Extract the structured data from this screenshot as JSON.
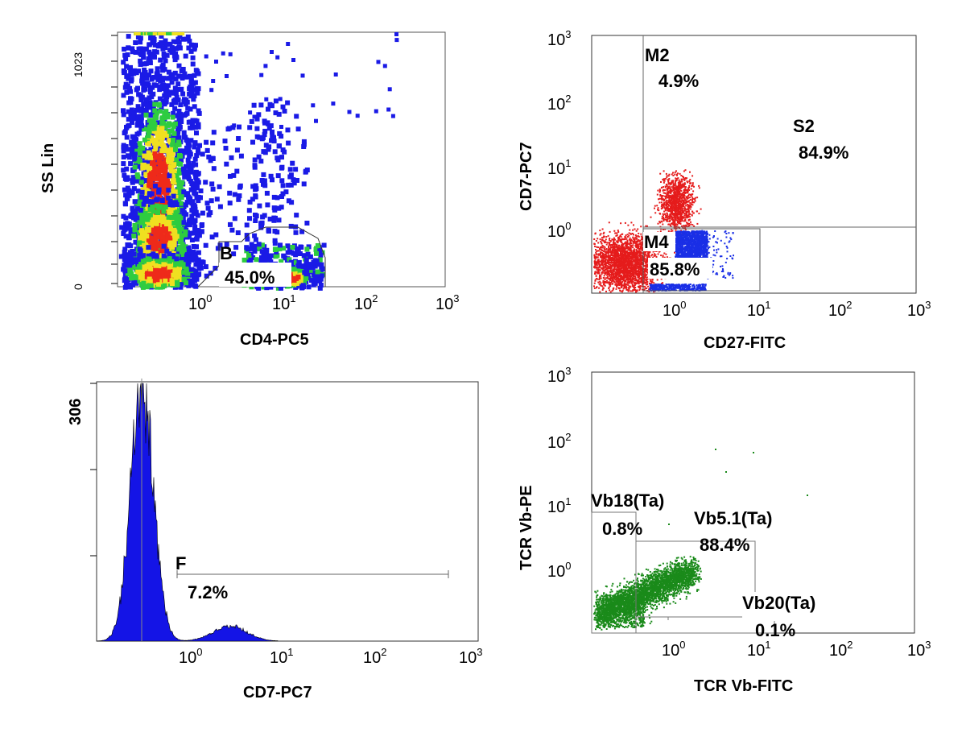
{
  "colors": {
    "density_low": "#1a1ae6",
    "density_mid": "#2ecc40",
    "density_high": "#f0e020",
    "density_peak": "#ee2a1a",
    "histogram_fill": "#1414e6",
    "red_events": "#e51c1c",
    "blue_events": "#1a2fe6",
    "green_events": "#1a8a1a"
  },
  "chart_data": [
    {
      "type": "scatter",
      "subtype": "density_dot_plot",
      "xlabel": "CD4-PC5",
      "ylabel": "SS Lin",
      "x_scale": "log",
      "xlim": [
        0.1,
        1000
      ],
      "y_scale": "linear",
      "ylim": [
        0,
        1023
      ],
      "x_tick_labels": [
        "10^0",
        "10^1",
        "10^2",
        "10^3"
      ],
      "y_tick_labels": [
        "0",
        "1023"
      ],
      "gates": [
        {
          "name": "B",
          "percent": "45.0%",
          "x_range": [
            10,
            30
          ],
          "y_range": [
            0,
            180
          ]
        }
      ],
      "clusters": [
        {
          "x_center": 0.3,
          "y_center": 400,
          "density": "high"
        },
        {
          "x_center": 0.3,
          "y_center": 200,
          "density": "high"
        },
        {
          "x_center": 0.3,
          "y_center": 60,
          "density": "high"
        },
        {
          "x_center": 13,
          "y_center": 60,
          "density": "peak"
        }
      ]
    },
    {
      "type": "scatter",
      "subtype": "quadrant_dot_plot",
      "xlabel": "CD27-FITC",
      "ylabel": "CD7-PC7",
      "x_scale": "log",
      "y_scale": "log",
      "xlim": [
        0.1,
        1000
      ],
      "ylim": [
        0.1,
        1000
      ],
      "x_tick_labels": [
        "10^0",
        "10^1",
        "10^2",
        "10^3"
      ],
      "y_tick_labels": [
        "10^0",
        "10^1",
        "10^2",
        "10^3"
      ],
      "gates": [
        {
          "name": "M2",
          "percent": "4.9%"
        },
        {
          "name": "S2",
          "percent": "84.9%"
        },
        {
          "name": "M4",
          "percent": "85.8%"
        }
      ],
      "series": [
        {
          "color": "red",
          "clusters": [
            {
              "x": 0.25,
              "y": 0.3
            },
            {
              "x": 1.1,
              "y": 2.5
            }
          ]
        },
        {
          "color": "blue",
          "clusters": [
            {
              "x": 1.3,
              "y": 0.4
            }
          ]
        }
      ]
    },
    {
      "type": "area",
      "subtype": "histogram",
      "xlabel": "CD7-PC7",
      "x_scale": "log",
      "xlim": [
        0.1,
        1000
      ],
      "ylim": [
        0,
        306
      ],
      "y_tick_labels": [
        "306"
      ],
      "x_tick_labels": [
        "10^0",
        "10^1",
        "10^2",
        "10^3"
      ],
      "gates": [
        {
          "name": "F",
          "percent": "7.2%",
          "x_range": [
            0.8,
            600
          ]
        }
      ],
      "peaks": [
        {
          "x": 0.3,
          "y": 306
        },
        {
          "x": 2.5,
          "y": 18
        }
      ]
    },
    {
      "type": "scatter",
      "subtype": "dot_plot",
      "xlabel": "TCR Vb-FITC",
      "ylabel": "TCR Vb-PE",
      "x_scale": "log",
      "y_scale": "log",
      "xlim": [
        0.1,
        1000
      ],
      "ylim": [
        0.1,
        1000
      ],
      "x_tick_labels": [
        "10^0",
        "10^1",
        "10^2",
        "10^3"
      ],
      "y_tick_labels": [
        "10^0",
        "10^1",
        "10^2",
        "10^3"
      ],
      "gates": [
        {
          "name": "Vb18(Ta)",
          "percent": "0.8%"
        },
        {
          "name": "Vb5.1(Ta)",
          "percent": "88.4%"
        },
        {
          "name": "Vb20(Ta)",
          "percent": "0.1%"
        }
      ],
      "series": [
        {
          "color": "green",
          "clusters": [
            {
              "x": 0.5,
              "y": 0.35
            }
          ]
        }
      ]
    }
  ]
}
